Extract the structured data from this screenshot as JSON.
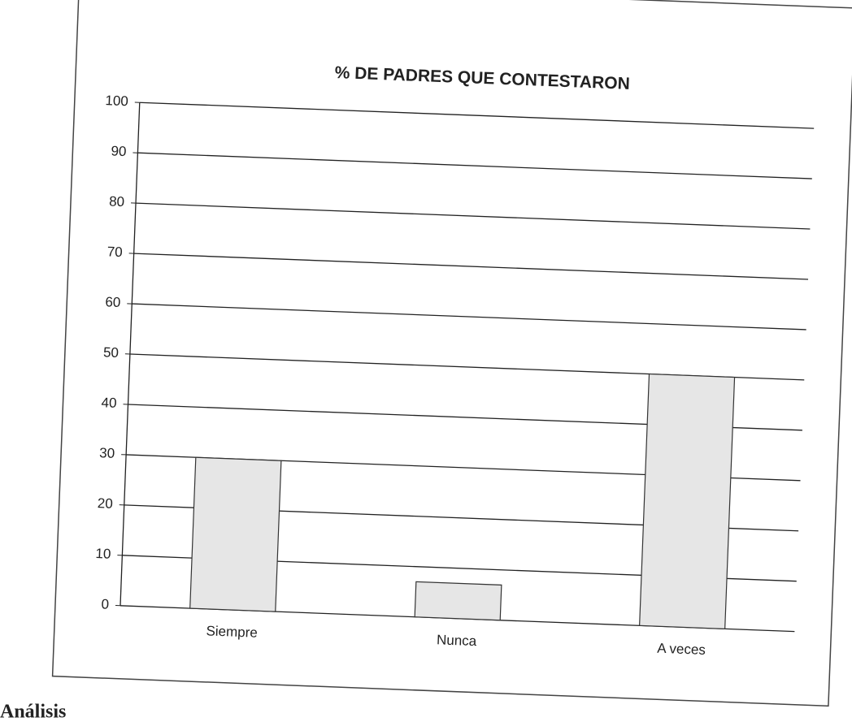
{
  "chart_data": {
    "type": "bar",
    "title": "% DE PADRES QUE CONTESTARON",
    "categories": [
      "Siempre",
      "Nunca",
      "A veces"
    ],
    "values": [
      30,
      7,
      50
    ],
    "color": "#e6e6e6",
    "ylim": [
      0,
      100
    ],
    "yticks": [
      0,
      10,
      20,
      30,
      40,
      50,
      60,
      70,
      80,
      90,
      100
    ],
    "grid": true
  },
  "footer": {
    "heading": "Análisis"
  }
}
